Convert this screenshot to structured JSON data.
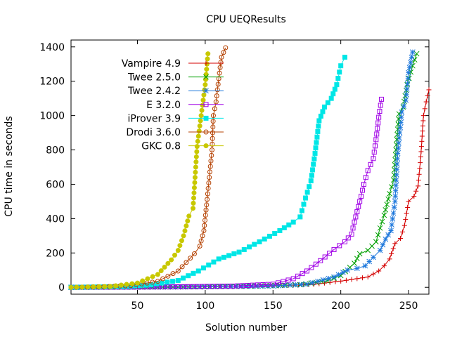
{
  "chart_data": {
    "type": "line",
    "title": "CPU UEQResults",
    "xlabel": "Solution number",
    "ylabel": "CPU time in seconds",
    "xlim": [
      1,
      265
    ],
    "ylim": [
      -40,
      1440
    ],
    "xticks": [
      50,
      100,
      150,
      200,
      250
    ],
    "yticks": [
      0,
      200,
      400,
      600,
      800,
      1000,
      1200,
      1400
    ],
    "legend_position": "top-left",
    "series": [
      {
        "name": "Vampire 4.9",
        "color": "#d40000",
        "marker": "plus",
        "points": [
          [
            1,
            0
          ],
          [
            50,
            1
          ],
          [
            100,
            4
          ],
          [
            150,
            8
          ],
          [
            180,
            17
          ],
          [
            200,
            36
          ],
          [
            220,
            60
          ],
          [
            228,
            95
          ],
          [
            232,
            125
          ],
          [
            236,
            165
          ],
          [
            240,
            255
          ],
          [
            244,
            285
          ],
          [
            247,
            360
          ],
          [
            250,
            500
          ],
          [
            254,
            530
          ],
          [
            257,
            590
          ],
          [
            259,
            760
          ],
          [
            261,
            1000
          ],
          [
            263,
            1080
          ],
          [
            265,
            1150
          ]
        ]
      },
      {
        "name": "Twee 2.5.0",
        "color": "#00a000",
        "marker": "x",
        "points": [
          [
            1,
            0
          ],
          [
            80,
            2
          ],
          [
            130,
            6
          ],
          [
            170,
            15
          ],
          [
            190,
            38
          ],
          [
            200,
            68
          ],
          [
            210,
            140
          ],
          [
            214,
            195
          ],
          [
            220,
            215
          ],
          [
            226,
            265
          ],
          [
            229,
            345
          ],
          [
            232,
            420
          ],
          [
            236,
            545
          ],
          [
            239,
            625
          ],
          [
            241,
            830
          ],
          [
            243,
            1010
          ],
          [
            246,
            1050
          ],
          [
            249,
            1180
          ],
          [
            253,
            1290
          ],
          [
            256,
            1360
          ]
        ]
      },
      {
        "name": "Twee 2.4.2",
        "color": "#1e78dc",
        "marker": "star",
        "points": [
          [
            1,
            0
          ],
          [
            100,
            3
          ],
          [
            150,
            8
          ],
          [
            175,
            18
          ],
          [
            195,
            60
          ],
          [
            205,
            100
          ],
          [
            212,
            110
          ],
          [
            218,
            125
          ],
          [
            224,
            175
          ],
          [
            229,
            215
          ],
          [
            233,
            280
          ],
          [
            237,
            330
          ],
          [
            240,
            500
          ],
          [
            242,
            780
          ],
          [
            245,
            1020
          ],
          [
            248,
            1090
          ],
          [
            250,
            1250
          ],
          [
            253,
            1370
          ]
        ]
      },
      {
        "name": "E 3.2.0",
        "color": "#a000e6",
        "marker": "square-open",
        "points": [
          [
            1,
            0
          ],
          [
            80,
            3
          ],
          [
            120,
            7
          ],
          [
            150,
            18
          ],
          [
            165,
            50
          ],
          [
            175,
            95
          ],
          [
            185,
            155
          ],
          [
            195,
            220
          ],
          [
            203,
            265
          ],
          [
            208,
            310
          ],
          [
            210,
            380
          ],
          [
            212,
            440
          ],
          [
            215,
            530
          ],
          [
            217,
            600
          ],
          [
            220,
            680
          ],
          [
            224,
            750
          ],
          [
            226,
            860
          ],
          [
            228,
            990
          ],
          [
            230,
            1095
          ]
        ]
      },
      {
        "name": "iProver 3.9",
        "color": "#00e6e6",
        "marker": "square-filled",
        "points": [
          [
            1,
            0
          ],
          [
            40,
            4
          ],
          [
            60,
            15
          ],
          [
            80,
            40
          ],
          [
            95,
            95
          ],
          [
            110,
            165
          ],
          [
            125,
            205
          ],
          [
            140,
            265
          ],
          [
            155,
            330
          ],
          [
            165,
            380
          ],
          [
            170,
            410
          ],
          [
            174,
            520
          ],
          [
            178,
            620
          ],
          [
            181,
            780
          ],
          [
            184,
            970
          ],
          [
            188,
            1050
          ],
          [
            193,
            1100
          ],
          [
            197,
            1180
          ],
          [
            200,
            1290
          ],
          [
            203,
            1340
          ]
        ]
      },
      {
        "name": "Drodi 3.6.0",
        "color": "#b44000",
        "marker": "circle-open",
        "points": [
          [
            1,
            0
          ],
          [
            25,
            3
          ],
          [
            45,
            10
          ],
          [
            65,
            35
          ],
          [
            80,
            95
          ],
          [
            86,
            145
          ],
          [
            92,
            195
          ],
          [
            96,
            240
          ],
          [
            99,
            330
          ],
          [
            101,
            480
          ],
          [
            103,
            640
          ],
          [
            105,
            800
          ],
          [
            106,
            1000
          ],
          [
            108,
            1080
          ],
          [
            109,
            1150
          ],
          [
            111,
            1280
          ],
          [
            112,
            1340
          ],
          [
            115,
            1395
          ]
        ]
      },
      {
        "name": "GKC 0.8",
        "color": "#c8c800",
        "marker": "circle-filled",
        "points": [
          [
            1,
            0
          ],
          [
            30,
            5
          ],
          [
            50,
            25
          ],
          [
            65,
            75
          ],
          [
            75,
            160
          ],
          [
            80,
            215
          ],
          [
            84,
            300
          ],
          [
            88,
            415
          ],
          [
            91,
            460
          ],
          [
            94,
            820
          ],
          [
            96,
            940
          ],
          [
            98,
            1060
          ],
          [
            100,
            1180
          ],
          [
            102,
            1360
          ]
        ]
      }
    ]
  }
}
